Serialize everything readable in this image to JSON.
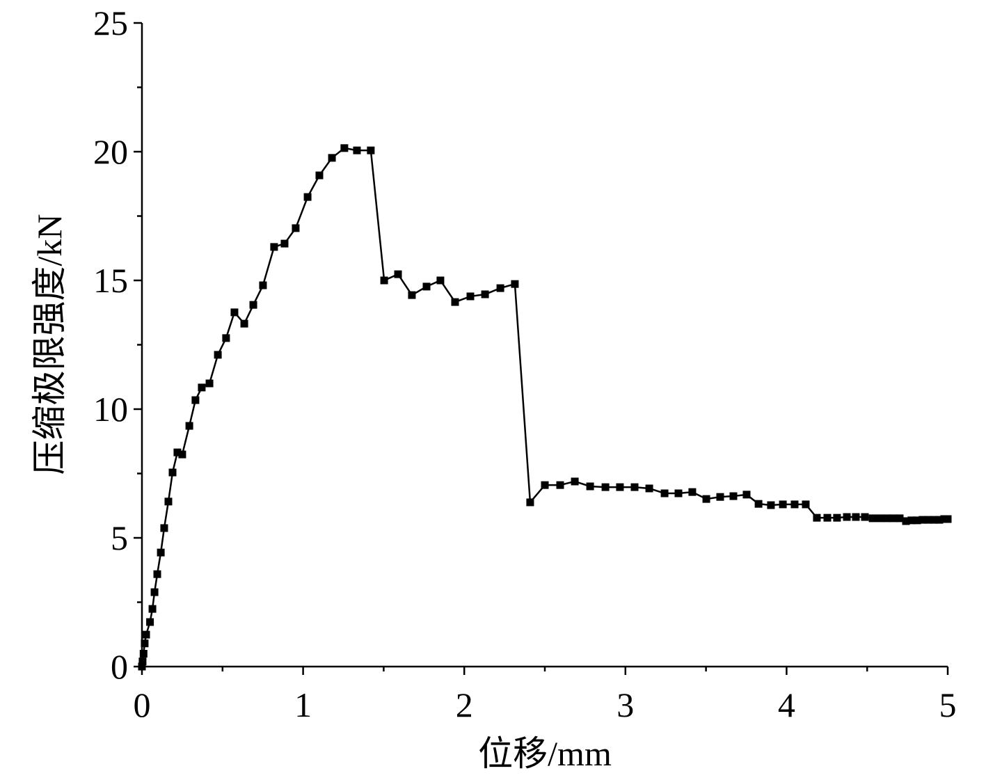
{
  "chart_data": {
    "type": "line",
    "marker": "square",
    "color": "#000000",
    "x_label": "位移/mm",
    "y_label": "压缩极限强度/kN",
    "xlim": [
      0,
      5
    ],
    "xticks": [
      0,
      1,
      2,
      3,
      4,
      5
    ],
    "xminorticks": [
      0.5,
      1.5,
      2.5,
      3.5,
      4.5
    ],
    "ylim": [
      0,
      25
    ],
    "yticks": [
      0,
      5,
      10,
      15,
      20,
      25
    ],
    "yminorticks": [
      2.5,
      7.5,
      12.5,
      17.5,
      22.5
    ],
    "series": [
      {
        "name": "压缩极限强度",
        "color": "#000000",
        "x": [
          0,
          0.004,
          0.01,
          0.017,
          0.026,
          0.05,
          0.065,
          0.078,
          0.095,
          0.117,
          0.138,
          0.164,
          0.19,
          0.22,
          0.25,
          0.294,
          0.332,
          0.371,
          0.419,
          0.471,
          0.522,
          0.574,
          0.635,
          0.691,
          0.751,
          0.82,
          0.885,
          0.954,
          1.028,
          1.101,
          1.179,
          1.256,
          1.334,
          1.42,
          1.503,
          1.589,
          1.675,
          1.766,
          1.852,
          1.943,
          2.038,
          2.129,
          2.224,
          2.314,
          2.409,
          2.5,
          2.595,
          2.686,
          2.781,
          2.876,
          2.966,
          3.057,
          3.148,
          3.243,
          3.329,
          3.415,
          3.502,
          3.588,
          3.67,
          3.752,
          3.826,
          3.903,
          3.977,
          4.05,
          4.119,
          4.188,
          4.253,
          4.313,
          4.374,
          4.43,
          4.486,
          4.534,
          4.581,
          4.624,
          4.663,
          4.702,
          4.741,
          4.775,
          4.81,
          4.844,
          4.879,
          4.914,
          4.948,
          4.978,
          5.0
        ],
        "values": [
          0,
          0.2,
          0.5,
          0.9,
          1.24,
          1.73,
          2.24,
          2.89,
          3.59,
          4.43,
          5.38,
          6.41,
          7.54,
          8.32,
          8.24,
          9.35,
          10.35,
          10.84,
          11.0,
          12.11,
          12.76,
          13.76,
          13.32,
          14.05,
          14.81,
          16.3,
          16.43,
          17.03,
          18.24,
          19.08,
          19.76,
          20.14,
          20.05,
          20.05,
          15.0,
          15.24,
          14.43,
          14.76,
          15.0,
          14.16,
          14.38,
          14.46,
          14.7,
          14.86,
          6.38,
          7.05,
          7.05,
          7.19,
          7.0,
          6.97,
          6.97,
          6.97,
          6.92,
          6.73,
          6.73,
          6.78,
          6.51,
          6.59,
          6.62,
          6.68,
          6.32,
          6.27,
          6.3,
          6.3,
          6.3,
          5.78,
          5.78,
          5.78,
          5.81,
          5.81,
          5.81,
          5.76,
          5.76,
          5.76,
          5.76,
          5.76,
          5.65,
          5.68,
          5.68,
          5.7,
          5.7,
          5.7,
          5.7,
          5.73,
          5.73
        ]
      }
    ]
  }
}
